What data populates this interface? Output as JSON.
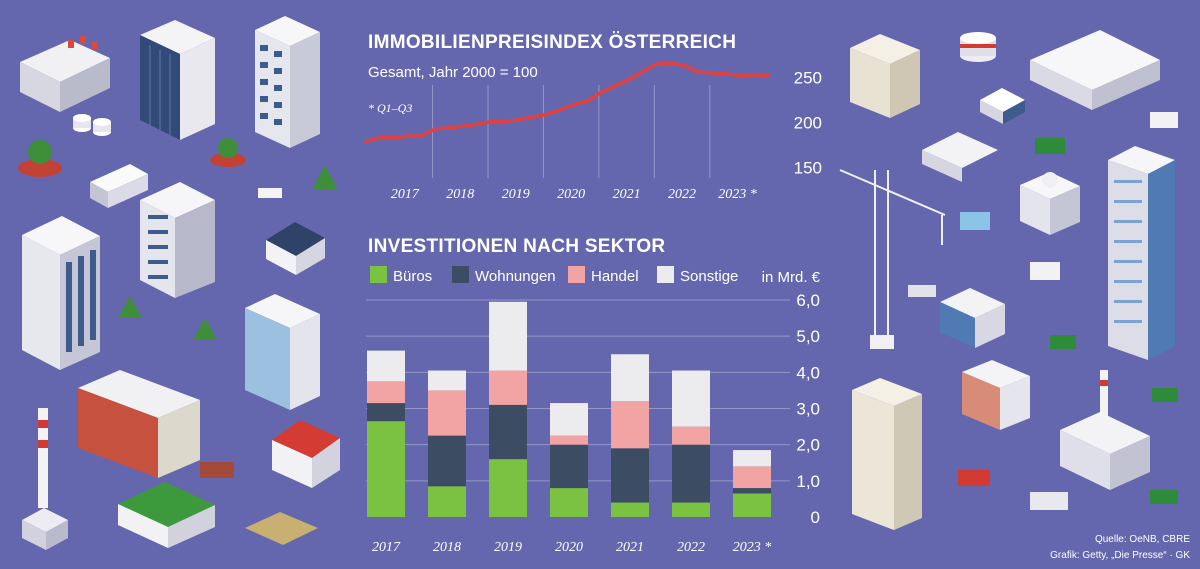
{
  "colors": {
    "background": "#6467ae",
    "line": "#e0413e",
    "buros": "#7cc242",
    "wohnungen": "#3b4c63",
    "handel": "#f2a3a3",
    "sonstige": "#ececee",
    "grid": "#9597c8"
  },
  "chart_data": [
    {
      "type": "line",
      "title": "IMMOBILIENPREISINDEX ÖSTERREICH",
      "subtitle": "Gesamt, Jahr 2000 = 100",
      "note": "* Q1–Q3",
      "categories": [
        "2017",
        "2018",
        "2019",
        "2020",
        "2021",
        "2022",
        "2023 *"
      ],
      "yticks": [
        "250",
        "200",
        "150"
      ],
      "ylim": [
        145,
        265
      ],
      "grid": "vertical",
      "x": [
        2016.5,
        2016.75,
        2017.0,
        2017.25,
        2017.5,
        2017.75,
        2018.0,
        2018.25,
        2018.5,
        2018.75,
        2019.0,
        2019.25,
        2019.5,
        2019.75,
        2020.0,
        2020.25,
        2020.5,
        2020.75,
        2021.0,
        2021.25,
        2021.5,
        2021.75,
        2022.0,
        2022.25,
        2022.5,
        2022.75,
        2023.0,
        2023.25,
        2023.5,
        2023.75
      ],
      "values": [
        179,
        183,
        183,
        185,
        185,
        193,
        194,
        196,
        198,
        201,
        201,
        203,
        206,
        209,
        214,
        220,
        224,
        234,
        241,
        248,
        257,
        265,
        266,
        263,
        256,
        255,
        254,
        252,
        253,
        252
      ]
    },
    {
      "type": "bar",
      "stacked": true,
      "title": "INVESTITIONEN NACH SEKTOR",
      "unit": "in Mrd. €",
      "categories": [
        "2017",
        "2018",
        "2019",
        "2020",
        "2021",
        "2022",
        "2023 *"
      ],
      "ylim": [
        0,
        6.0
      ],
      "yticks": [
        "6,0",
        "5,0",
        "4,0",
        "3,0",
        "2,0",
        "1,0",
        "0"
      ],
      "legend": "top",
      "series": [
        {
          "name": "Büros",
          "color": "#7cc242",
          "values": [
            2.65,
            0.85,
            1.6,
            0.8,
            0.4,
            0.4,
            0.65
          ]
        },
        {
          "name": "Wohnungen",
          "color": "#3b4c63",
          "values": [
            0.5,
            1.4,
            1.5,
            1.2,
            1.5,
            1.6,
            0.15
          ]
        },
        {
          "name": "Handel",
          "color": "#f2a3a3",
          "values": [
            0.6,
            1.25,
            0.95,
            0.25,
            1.3,
            0.5,
            0.6
          ]
        },
        {
          "name": "Sonstige",
          "color": "#ececee",
          "values": [
            0.85,
            0.55,
            1.9,
            0.9,
            1.3,
            1.55,
            0.45
          ]
        }
      ]
    }
  ],
  "source": {
    "line1": "Quelle: OeNB, CBRE",
    "line2": "Grafik: Getty, „Die Presse“ · GK"
  }
}
